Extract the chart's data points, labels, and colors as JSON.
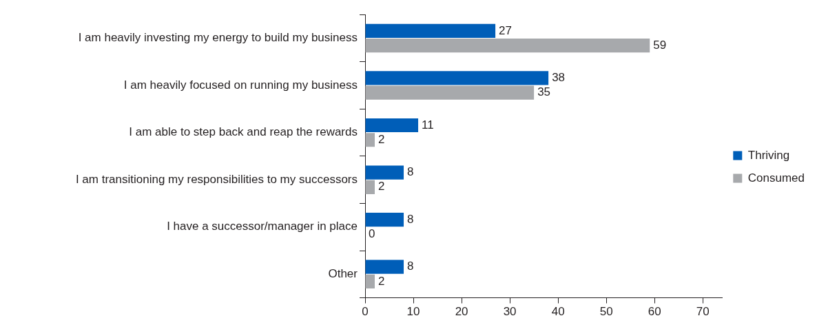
{
  "chart_data": {
    "type": "bar",
    "orientation": "horizontal",
    "categories": [
      "I am heavily investing my energy to build my business",
      "I am heavily focused on running my business",
      "I am able to step back and reap the rewards",
      "I am transitioning my responsibilities to my successors",
      "I have a successor/manager in place",
      "Other"
    ],
    "series": [
      {
        "name": "Thriving",
        "color": "#005eb8",
        "values": [
          27,
          38,
          11,
          8,
          8,
          8
        ]
      },
      {
        "name": "Consumed",
        "color": "#a7a9ac",
        "values": [
          59,
          35,
          2,
          2,
          0,
          2
        ]
      }
    ],
    "xlim": [
      0,
      74
    ],
    "xticks": [
      0,
      10,
      20,
      30,
      40,
      50,
      60,
      70
    ],
    "data_labels": true,
    "grid": false,
    "legend": "right"
  }
}
